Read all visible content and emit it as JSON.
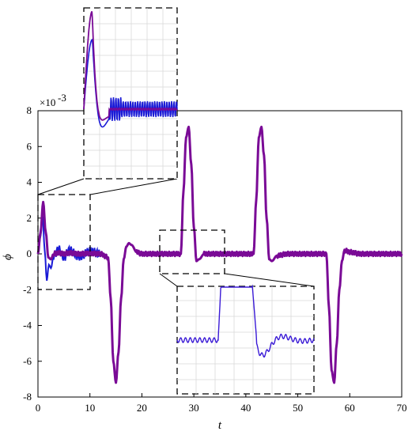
{
  "chart_data": {
    "type": "line",
    "title": "",
    "xlabel": "t",
    "ylabel": "ϕ",
    "y_exponent_label": "×10",
    "y_exponent_power": "-3",
    "xlim": [
      0,
      70
    ],
    "ylim": [
      -8,
      8
    ],
    "x_ticks": [
      0,
      10,
      20,
      30,
      40,
      50,
      60,
      70
    ],
    "y_ticks": [
      -8,
      -6,
      -4,
      -2,
      0,
      2,
      4,
      6,
      8
    ],
    "grid": false,
    "colors": {
      "series_purple": "#7a0a96",
      "series_blue": "#1a1ad6",
      "axis": "#000000",
      "inset_grid": "#d9d9d9"
    },
    "series": [
      {
        "color_role": "purple",
        "x": [
          0,
          0.5,
          1,
          1.5,
          2,
          2.5,
          3,
          4,
          5,
          6,
          8,
          10,
          12,
          13.5,
          14,
          14.5,
          15,
          15.5,
          16,
          16.5,
          17,
          17.5,
          18,
          19,
          20,
          22,
          25,
          27.5,
          28,
          28.5,
          29,
          29.5,
          30,
          30.5,
          31,
          32,
          34,
          38,
          41.5,
          42,
          42.5,
          43,
          43.5,
          44,
          44.5,
          45,
          46,
          48,
          52,
          55.5,
          56,
          56.5,
          57,
          57.5,
          58,
          58.5,
          59,
          60,
          62,
          66,
          70
        ],
        "y": [
          0,
          1.2,
          2.9,
          1.2,
          -0.2,
          -0.3,
          0,
          0.05,
          0,
          0.05,
          0,
          0.03,
          0,
          -0.2,
          -2.5,
          -6.0,
          -7.2,
          -5.5,
          -2.5,
          -0.3,
          0.4,
          0.6,
          0.5,
          0.1,
          0,
          0,
          0,
          0,
          3.5,
          6.5,
          7.1,
          5.0,
          1.5,
          -0.4,
          -0.3,
          0,
          0,
          0,
          0,
          3.0,
          6.5,
          7.1,
          5.5,
          2.0,
          -0.3,
          -0.4,
          -0.1,
          0,
          0,
          0,
          -3.0,
          -6.5,
          -7.2,
          -5.0,
          -2.0,
          -0.4,
          0.2,
          0.1,
          0,
          0,
          0
        ]
      },
      {
        "color_role": "blue",
        "x": [
          0,
          0.5,
          0.9,
          1.3,
          1.7,
          2.1,
          2.5,
          3,
          4,
          5,
          6,
          8,
          10,
          12
        ],
        "y": [
          0,
          1.0,
          2.1,
          0.2,
          -1.5,
          -0.6,
          -0.8,
          -0.1,
          0.25,
          -0.2,
          0.2,
          -0.15,
          0.15,
          0
        ]
      }
    ]
  }
}
